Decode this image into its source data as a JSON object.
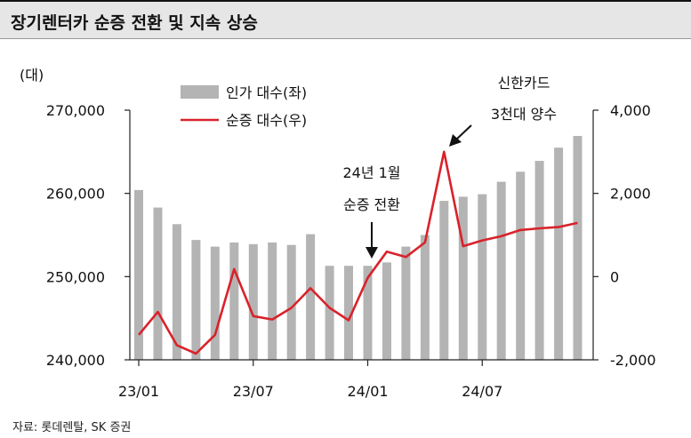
{
  "title": "장기렌터카 순증 전환 및 지속 상승",
  "source": "자료: 롯데렌탈, SK 증권",
  "chart_data": {
    "type": "bar+line",
    "unit_label": "(대)",
    "x_tick_labels": [
      "23/01",
      "23/07",
      "24/01",
      "24/07"
    ],
    "left_axis": {
      "ticks": [
        "270,000",
        "260,000",
        "250,000",
        "240,000"
      ],
      "range": [
        240000,
        270000
      ]
    },
    "right_axis": {
      "ticks": [
        "4,000",
        "2,000",
        "0",
        "-2,000"
      ],
      "range": [
        -2000,
        4000
      ]
    },
    "legend": [
      {
        "name": "인가 대수(좌)",
        "color": "#b4b4b4"
      },
      {
        "name": "순증 대수(우)",
        "color": "#d9222a"
      }
    ],
    "annotations": [
      {
        "lines": [
          "24년 1월",
          "순증 전환"
        ]
      },
      {
        "lines": [
          "신한카드",
          "3천대 양수"
        ]
      }
    ],
    "series": [
      {
        "name": "인가 대수(좌)",
        "type": "bar",
        "axis": "left",
        "values": [
          260400,
          258300,
          256300,
          254400,
          253600,
          254100,
          253900,
          254100,
          253800,
          255100,
          251300,
          251300,
          251300,
          251700,
          253600,
          255000,
          259100,
          259600,
          259900,
          261400,
          262600,
          263900,
          265500,
          266900
        ]
      },
      {
        "name": "순증 대수(우)",
        "type": "line",
        "axis": "right",
        "values": [
          -1400,
          -850,
          -1650,
          -1850,
          -1400,
          180,
          -950,
          -1030,
          -750,
          -280,
          -750,
          -1050,
          -30,
          600,
          470,
          820,
          3000,
          730,
          870,
          970,
          1120,
          1160,
          1190,
          1290
        ]
      }
    ]
  }
}
